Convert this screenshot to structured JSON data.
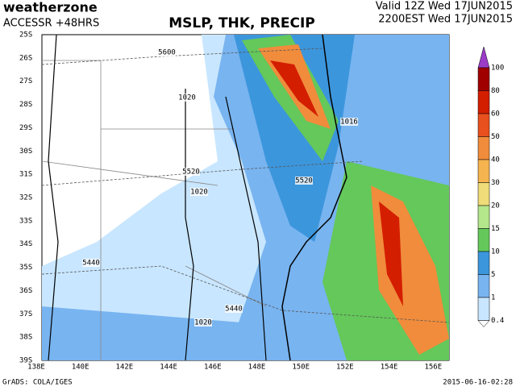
{
  "header": {
    "brand": "weatherzone",
    "model": "ACCESSR +48HRS",
    "title": "MSLP, THK, PRECIP",
    "valid": "Valid 12Z Wed 17JUN2015",
    "local": "2200EST Wed 17JUN2015"
  },
  "map": {
    "lat_labels": [
      "25S",
      "26S",
      "27S",
      "28S",
      "29S",
      "30S",
      "31S",
      "32S",
      "33S",
      "34S",
      "35S",
      "36S",
      "37S",
      "38S",
      "39S"
    ],
    "lon_labels": [
      "138E",
      "140E",
      "142E",
      "144E",
      "146E",
      "148E",
      "150E",
      "152E",
      "154E",
      "156E"
    ],
    "contour_labels": [
      {
        "text": "5600"
      },
      {
        "text": "1020"
      },
      {
        "text": "1016"
      },
      {
        "text": "5520"
      },
      {
        "text": "5520"
      },
      {
        "text": "1020"
      },
      {
        "text": "5440"
      },
      {
        "text": "5440"
      },
      {
        "text": "1020"
      }
    ]
  },
  "legend": {
    "labels": [
      "100",
      "80",
      "60",
      "50",
      "40",
      "30",
      "20",
      "15",
      "10",
      "5",
      "1",
      "0.4"
    ],
    "colors": [
      "#a00000",
      "#d41e00",
      "#e8501e",
      "#f08c3c",
      "#f5b450",
      "#f0dc78",
      "#b4e68c",
      "#64c85a",
      "#3c96dc",
      "#78b4f0",
      "#c8e6ff"
    ],
    "top_color": "#9b3cc8"
  },
  "footer": {
    "left": "GrADS: COLA/IGES",
    "right": "2015-06-16-02:28"
  }
}
